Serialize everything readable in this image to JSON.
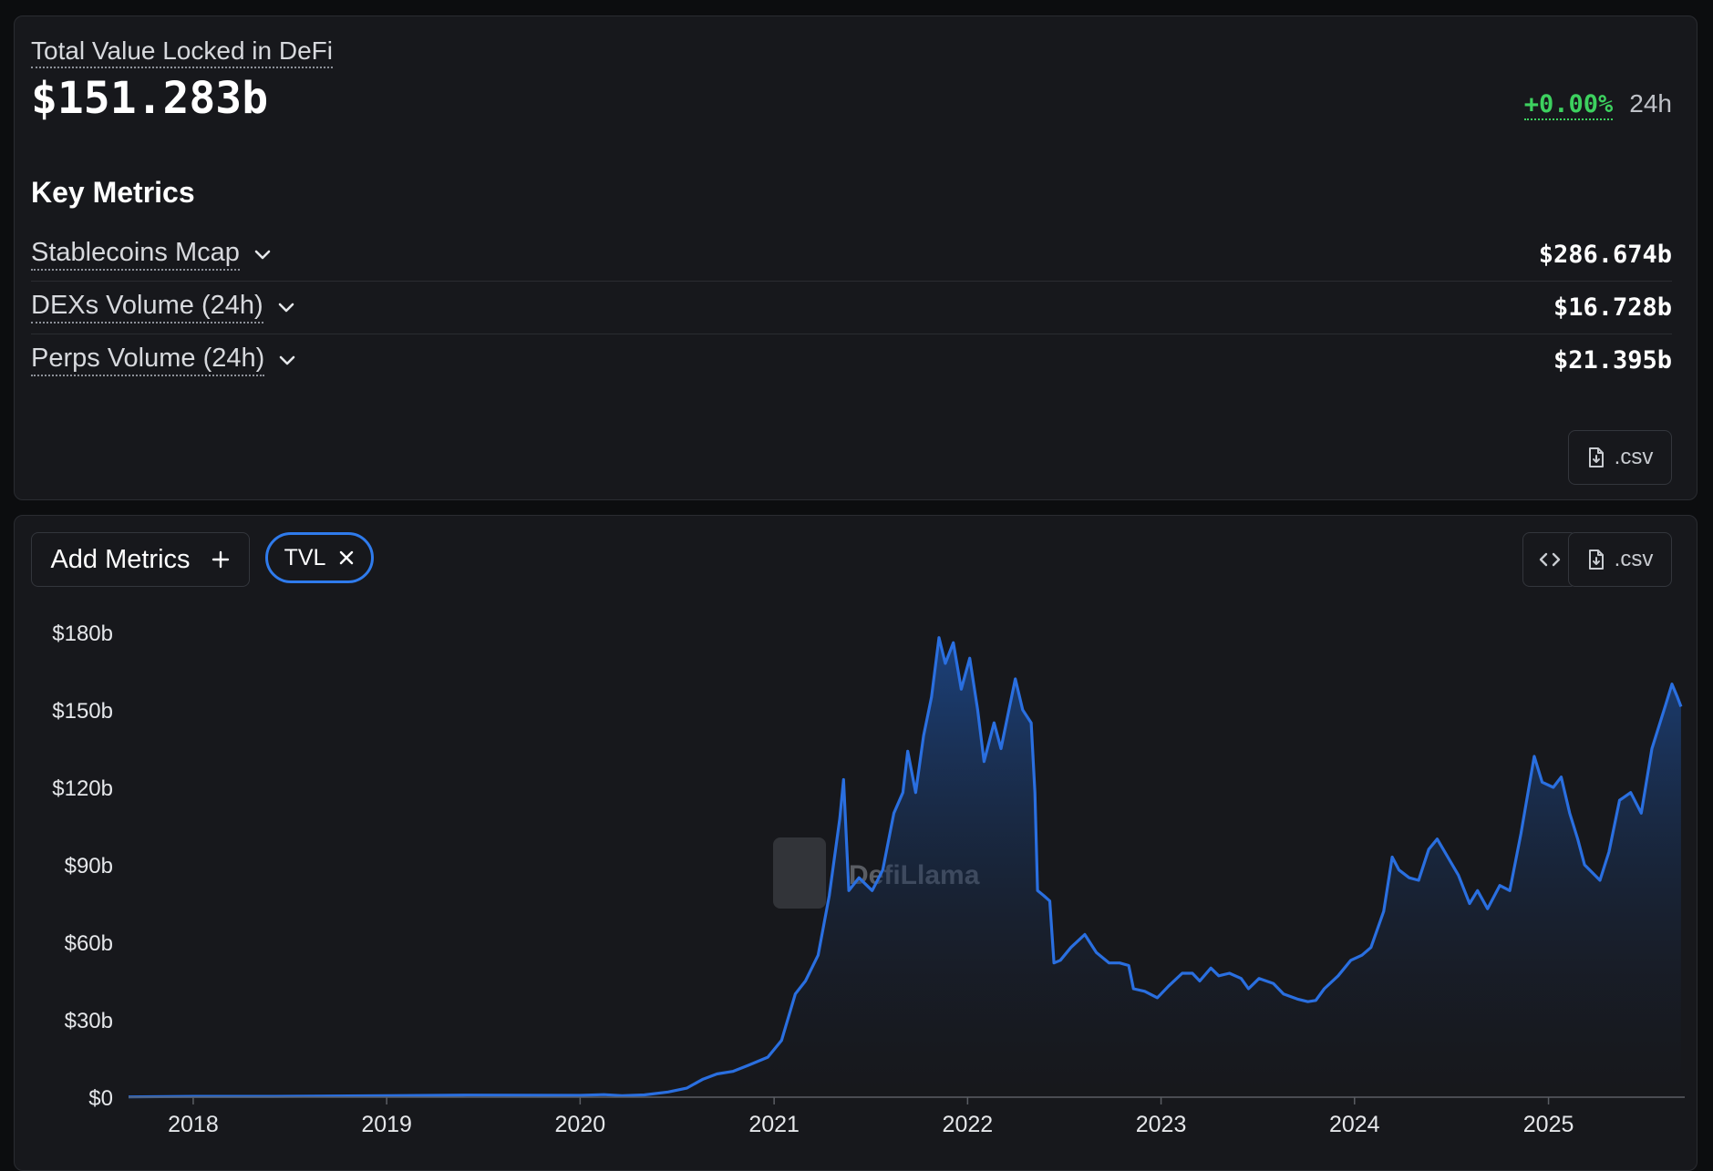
{
  "header": {
    "tvl_label": "Total Value Locked in DeFi",
    "tvl_value": "$151.283b",
    "change_pct": "+0.00%",
    "change_period": "24h"
  },
  "key_metrics": {
    "title": "Key Metrics",
    "items": [
      {
        "label": "Stablecoins Mcap",
        "value": "$286.674b"
      },
      {
        "label": "DEXs Volume (24h)",
        "value": "$16.728b"
      },
      {
        "label": "Perps Volume (24h)",
        "value": "$21.395b"
      }
    ],
    "csv_label": ".csv"
  },
  "toolbar": {
    "add_metrics_label": "Add Metrics",
    "chip_label": "TVL",
    "csv_label": ".csv"
  },
  "watermark": "DefiLlama",
  "colors": {
    "accent": "#2f7bec",
    "line": "#2a6fe0",
    "positive": "#3dd15f",
    "panel": "#17181c",
    "background": "#0c0d0f"
  },
  "icons": {
    "chevron": "chevron-down-icon",
    "csv": "file-download-icon",
    "add": "plus-icon",
    "remove": "close-icon",
    "embed": "code-icon"
  },
  "chart_data": {
    "type": "area",
    "series": [
      {
        "points": [
          [
            "2017-09-01",
            0.1
          ],
          [
            "2018-01-01",
            0.3
          ],
          [
            "2018-06-01",
            0.3
          ],
          [
            "2019-01-01",
            0.6
          ],
          [
            "2019-06-01",
            0.8
          ],
          [
            "2020-01-01",
            0.7
          ],
          [
            "2020-02-15",
            1.0
          ],
          [
            "2020-03-20",
            0.6
          ],
          [
            "2020-05-01",
            0.9
          ],
          [
            "2020-06-15",
            2.0
          ],
          [
            "2020-07-20",
            3.5
          ],
          [
            "2020-08-20",
            7.0
          ],
          [
            "2020-09-15",
            9.0
          ],
          [
            "2020-10-15",
            10.0
          ],
          [
            "2020-11-15",
            12.5
          ],
          [
            "2020-12-20",
            15.5
          ],
          [
            "2021-01-15",
            22.0
          ],
          [
            "2021-02-10",
            40.0
          ],
          [
            "2021-03-01",
            45.0
          ],
          [
            "2021-03-25",
            55.0
          ],
          [
            "2021-04-15",
            78.0
          ],
          [
            "2021-05-05",
            108.0
          ],
          [
            "2021-05-12",
            123.0
          ],
          [
            "2021-05-22",
            80.0
          ],
          [
            "2021-06-10",
            85.0
          ],
          [
            "2021-07-05",
            80.0
          ],
          [
            "2021-07-25",
            88.0
          ],
          [
            "2021-08-15",
            110.0
          ],
          [
            "2021-09-01",
            118.0
          ],
          [
            "2021-09-10",
            134.0
          ],
          [
            "2021-09-25",
            118.0
          ],
          [
            "2021-10-10",
            140.0
          ],
          [
            "2021-10-25",
            155.0
          ],
          [
            "2021-11-08",
            178.0
          ],
          [
            "2021-11-20",
            168.0
          ],
          [
            "2021-12-05",
            176.0
          ],
          [
            "2021-12-20",
            158.0
          ],
          [
            "2022-01-05",
            170.0
          ],
          [
            "2022-01-20",
            150.0
          ],
          [
            "2022-02-01",
            130.0
          ],
          [
            "2022-02-20",
            145.0
          ],
          [
            "2022-03-05",
            135.0
          ],
          [
            "2022-03-20",
            150.0
          ],
          [
            "2022-04-01",
            162.0
          ],
          [
            "2022-04-15",
            150.0
          ],
          [
            "2022-05-01",
            145.0
          ],
          [
            "2022-05-08",
            118.0
          ],
          [
            "2022-05-13",
            80.0
          ],
          [
            "2022-05-25",
            78.0
          ],
          [
            "2022-06-05",
            76.0
          ],
          [
            "2022-06-13",
            52.0
          ],
          [
            "2022-06-25",
            53.0
          ],
          [
            "2022-07-15",
            58.0
          ],
          [
            "2022-08-10",
            63.0
          ],
          [
            "2022-09-01",
            56.0
          ],
          [
            "2022-09-25",
            52.0
          ],
          [
            "2022-10-15",
            52.0
          ],
          [
            "2022-11-01",
            51.0
          ],
          [
            "2022-11-10",
            42.0
          ],
          [
            "2022-12-01",
            41.0
          ],
          [
            "2022-12-25",
            38.5
          ],
          [
            "2023-01-15",
            43.0
          ],
          [
            "2023-02-10",
            48.0
          ],
          [
            "2023-03-01",
            48.0
          ],
          [
            "2023-03-15",
            45.0
          ],
          [
            "2023-04-05",
            50.0
          ],
          [
            "2023-04-20",
            47.0
          ],
          [
            "2023-05-10",
            48.0
          ],
          [
            "2023-06-01",
            46.0
          ],
          [
            "2023-06-15",
            42.0
          ],
          [
            "2023-07-05",
            46.0
          ],
          [
            "2023-08-01",
            44.0
          ],
          [
            "2023-08-20",
            40.0
          ],
          [
            "2023-09-15",
            38.0
          ],
          [
            "2023-10-05",
            37.0
          ],
          [
            "2023-10-20",
            37.5
          ],
          [
            "2023-11-05",
            42.0
          ],
          [
            "2023-12-01",
            47.0
          ],
          [
            "2023-12-25",
            53.0
          ],
          [
            "2024-01-15",
            55.0
          ],
          [
            "2024-02-01",
            58.0
          ],
          [
            "2024-02-25",
            72.0
          ],
          [
            "2024-03-12",
            93.0
          ],
          [
            "2024-03-25",
            88.0
          ],
          [
            "2024-04-13",
            85.0
          ],
          [
            "2024-05-01",
            84.0
          ],
          [
            "2024-05-20",
            96.0
          ],
          [
            "2024-06-05",
            100.0
          ],
          [
            "2024-06-25",
            93.0
          ],
          [
            "2024-07-15",
            86.0
          ],
          [
            "2024-08-05",
            75.0
          ],
          [
            "2024-08-20",
            80.0
          ],
          [
            "2024-09-08",
            73.0
          ],
          [
            "2024-10-01",
            82.0
          ],
          [
            "2024-10-20",
            80.0
          ],
          [
            "2024-11-10",
            102.0
          ],
          [
            "2024-12-05",
            132.0
          ],
          [
            "2024-12-20",
            122.0
          ],
          [
            "2025-01-10",
            120.0
          ],
          [
            "2025-01-25",
            124.0
          ],
          [
            "2025-02-10",
            110.0
          ],
          [
            "2025-02-25",
            100.0
          ],
          [
            "2025-03-10",
            90.0
          ],
          [
            "2025-04-08",
            84.0
          ],
          [
            "2025-04-25",
            95.0
          ],
          [
            "2025-05-15",
            115.0
          ],
          [
            "2025-06-05",
            118.0
          ],
          [
            "2025-06-25",
            110.0
          ],
          [
            "2025-07-15",
            135.0
          ],
          [
            "2025-08-10",
            152.0
          ],
          [
            "2025-08-22",
            160.0
          ],
          [
            "2025-09-01",
            155.0
          ],
          [
            "2025-09-08",
            151.283
          ]
        ]
      }
    ],
    "xtick_labels": [
      "2018",
      "2019",
      "2020",
      "2021",
      "2022",
      "2023",
      "2024",
      "2025"
    ],
    "ytick_values": [
      0,
      30,
      60,
      90,
      120,
      150,
      180
    ],
    "ytick_labels": [
      "$0",
      "$30b",
      "$60b",
      "$90b",
      "$120b",
      "$150b",
      "$180b"
    ],
    "xlim": [
      "2017-09-01",
      "2025-09-15"
    ],
    "ylim": [
      0,
      180
    ],
    "grid": false
  }
}
